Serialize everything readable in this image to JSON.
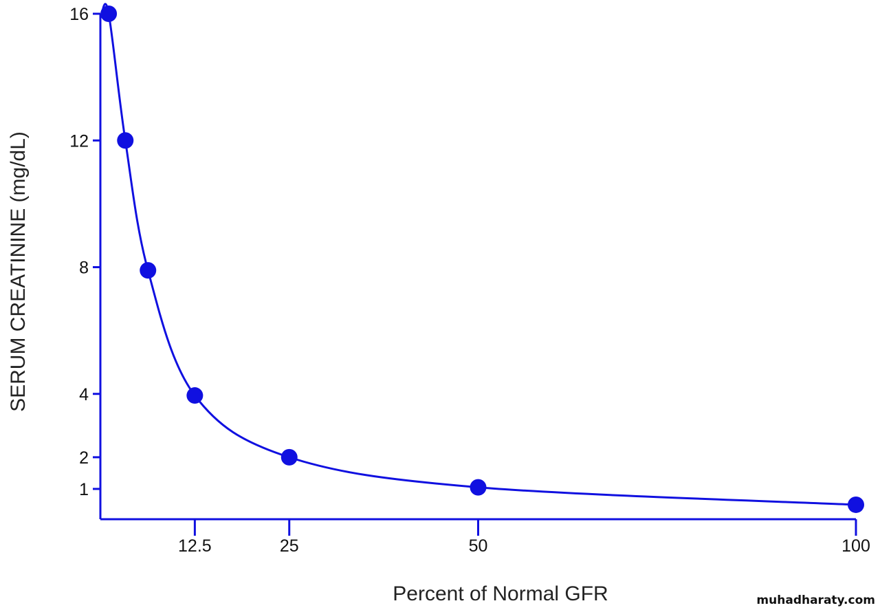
{
  "chart_data": {
    "type": "line",
    "title": "",
    "xlabel": "Percent of Normal GFR",
    "ylabel": "SERUM CREATININE (mg/dL)",
    "xlim": [
      0,
      100
    ],
    "ylim": [
      0,
      16
    ],
    "x_ticks": [
      12.5,
      25,
      50,
      100
    ],
    "x_tick_labels": [
      "12.5",
      "25",
      "50",
      "100"
    ],
    "y_ticks": [
      1,
      2,
      4,
      8,
      12,
      16
    ],
    "y_tick_labels": [
      "1",
      "2",
      "4",
      "8",
      "12",
      "16"
    ],
    "grid": false,
    "series": [
      {
        "name": "Serum creatinine",
        "color": "#1010e0",
        "x": [
          1.1,
          3.3,
          6.3,
          12.5,
          25,
          50,
          100
        ],
        "y": [
          16,
          12,
          7.9,
          3.95,
          2.0,
          1.05,
          0.5
        ]
      }
    ]
  },
  "watermark": "muhadharaty.com"
}
